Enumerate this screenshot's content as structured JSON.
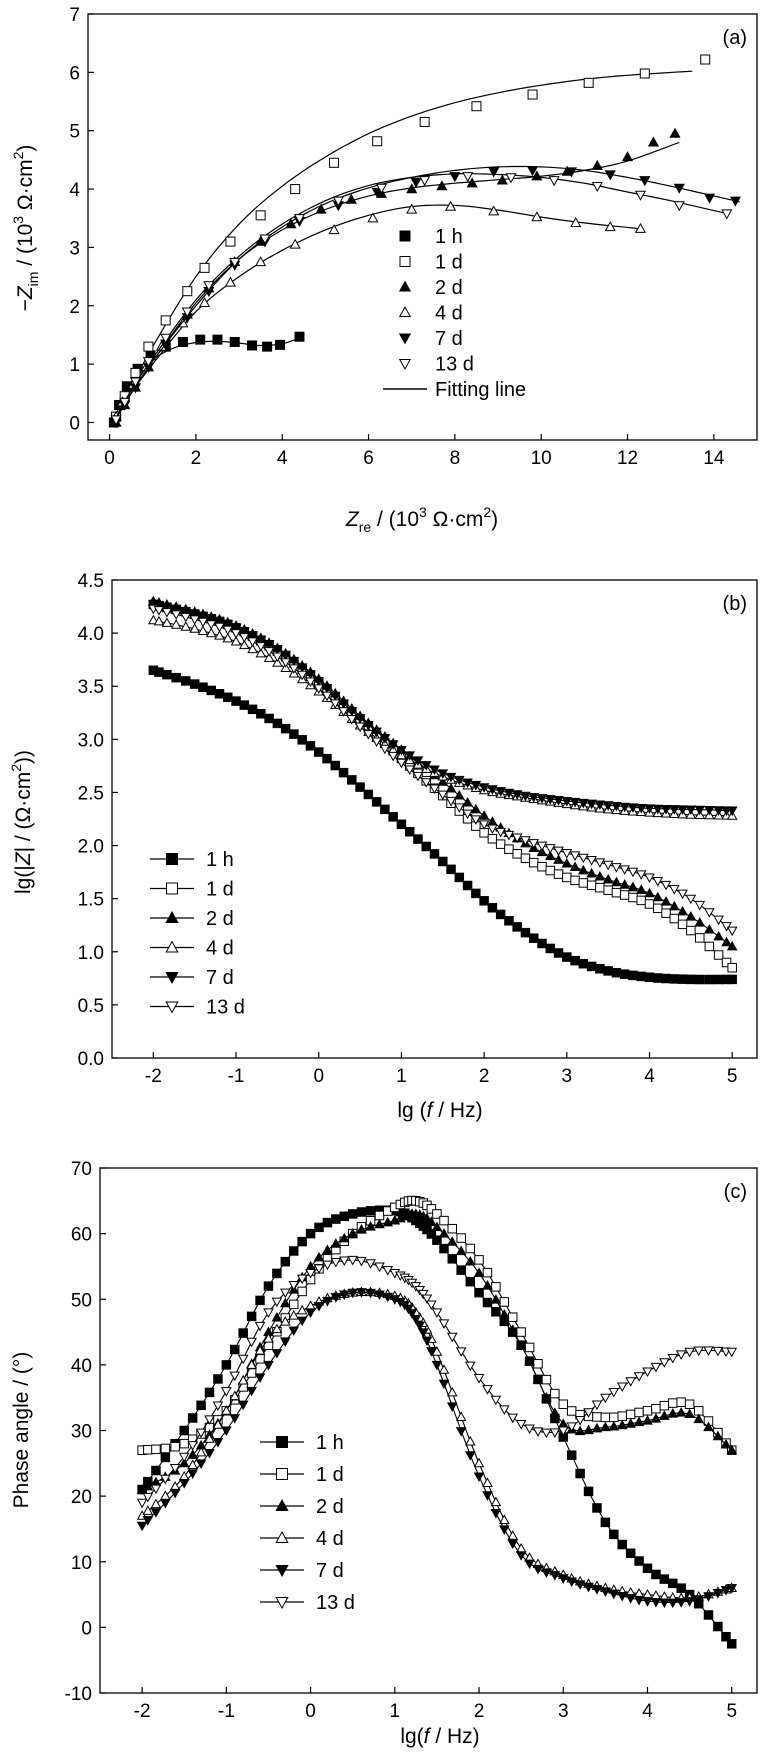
{
  "chart_data": [
    {
      "type": "scatter",
      "panel_label": "(a)",
      "xlabel": "Z_re / (10^3 Ω·cm^2)",
      "ylabel": "−Z_im / (10^3 Ω·cm^2)",
      "xlim": [
        -0.5,
        15
      ],
      "ylim": [
        -0.3,
        7
      ],
      "xticks": [
        "0",
        "2",
        "4",
        "6",
        "8",
        "10",
        "12",
        "14"
      ],
      "yticks": [
        "0",
        "1",
        "2",
        "3",
        "4",
        "5",
        "6",
        "7"
      ],
      "legend": {
        "placement": "center",
        "fit_label": "Fitting line"
      },
      "series": [
        {
          "name": "1 h",
          "marker": "square",
          "filled": true,
          "x": [
            0.1,
            0.22,
            0.4,
            0.65,
            0.95,
            1.3,
            1.7,
            2.1,
            2.5,
            2.9,
            3.3,
            3.65,
            3.95,
            4.4
          ],
          "y": [
            0.0,
            0.3,
            0.62,
            0.92,
            1.15,
            1.3,
            1.38,
            1.42,
            1.42,
            1.38,
            1.32,
            1.3,
            1.33,
            1.47
          ],
          "fit_x": [
            0.1,
            0.3,
            0.6,
            1.0,
            1.5,
            2.0,
            2.5,
            3.0,
            3.5,
            4.0,
            4.4
          ],
          "fit_y": [
            0.0,
            0.42,
            0.8,
            1.08,
            1.28,
            1.37,
            1.39,
            1.36,
            1.32,
            1.35,
            1.45
          ]
        },
        {
          "name": "1 d",
          "marker": "square",
          "filled": false,
          "x": [
            0.15,
            0.35,
            0.6,
            0.9,
            1.3,
            1.8,
            2.2,
            2.8,
            3.5,
            4.3,
            5.2,
            6.2,
            7.3,
            8.5,
            9.8,
            11.1,
            12.4,
            13.8
          ],
          "y": [
            0.1,
            0.45,
            0.85,
            1.3,
            1.75,
            2.25,
            2.65,
            3.1,
            3.55,
            4.0,
            4.45,
            4.82,
            5.15,
            5.42,
            5.62,
            5.82,
            5.98,
            6.22
          ],
          "fit_x": [
            0.1,
            0.5,
            1.0,
            2.0,
            3.0,
            4.0,
            5.0,
            6.0,
            7.0,
            8.0,
            9.0,
            10.0,
            11.0,
            12.0,
            13.5
          ],
          "fit_y": [
            0.0,
            0.6,
            1.3,
            2.5,
            3.4,
            4.05,
            4.55,
            4.95,
            5.25,
            5.48,
            5.65,
            5.78,
            5.88,
            5.95,
            6.02
          ]
        },
        {
          "name": "2 d",
          "marker": "triangle-up",
          "filled": true,
          "x": [
            0.15,
            0.35,
            0.6,
            0.9,
            1.3,
            1.8,
            2.3,
            2.9,
            3.5,
            4.2,
            4.9,
            5.6,
            6.3,
            7.0,
            7.7,
            8.4,
            9.1,
            9.9,
            10.6,
            11.3,
            12.0,
            12.6,
            13.1
          ],
          "y": [
            0.0,
            0.3,
            0.6,
            0.95,
            1.35,
            1.85,
            2.3,
            2.75,
            3.1,
            3.4,
            3.65,
            3.82,
            3.92,
            4.0,
            4.05,
            4.1,
            4.15,
            4.22,
            4.3,
            4.4,
            4.55,
            4.8,
            4.95
          ],
          "fit_x": [
            0.1,
            0.5,
            1.0,
            2.0,
            3.0,
            4.0,
            5.0,
            6.0,
            7.0,
            8.0,
            9.0,
            10.0,
            11.0,
            12.0,
            13.2
          ],
          "fit_y": [
            0.0,
            0.5,
            1.05,
            2.05,
            2.8,
            3.3,
            3.65,
            3.88,
            4.02,
            4.1,
            4.16,
            4.22,
            4.32,
            4.48,
            4.8
          ]
        },
        {
          "name": "4 d",
          "marker": "triangle-up",
          "filled": false,
          "x": [
            0.15,
            0.3,
            0.55,
            0.85,
            1.2,
            1.7,
            2.2,
            2.8,
            3.5,
            4.3,
            5.2,
            6.1,
            7.0,
            7.9,
            8.9,
            9.9,
            10.8,
            11.6,
            12.3
          ],
          "y": [
            0.1,
            0.35,
            0.65,
            0.95,
            1.3,
            1.7,
            2.05,
            2.4,
            2.75,
            3.05,
            3.3,
            3.5,
            3.65,
            3.7,
            3.62,
            3.52,
            3.42,
            3.35,
            3.32
          ],
          "fit_x": [
            0.1,
            0.5,
            1.0,
            2.0,
            3.0,
            4.0,
            5.0,
            6.0,
            7.0,
            8.0,
            9.0,
            10.0,
            11.0,
            12.3
          ],
          "fit_y": [
            0.0,
            0.5,
            1.0,
            1.9,
            2.5,
            2.95,
            3.3,
            3.55,
            3.7,
            3.72,
            3.64,
            3.52,
            3.42,
            3.32
          ]
        },
        {
          "name": "7 d",
          "marker": "triangle-down",
          "filled": true,
          "x": [
            0.15,
            0.35,
            0.6,
            0.9,
            1.3,
            1.8,
            2.3,
            2.9,
            3.6,
            4.4,
            5.3,
            6.2,
            7.1,
            8.0,
            8.9,
            9.8,
            10.7,
            11.6,
            12.4,
            13.2,
            13.9,
            14.5
          ],
          "y": [
            0.0,
            0.3,
            0.6,
            0.95,
            1.35,
            1.8,
            2.25,
            2.7,
            3.1,
            3.45,
            3.72,
            3.95,
            4.12,
            4.22,
            4.3,
            4.32,
            4.3,
            4.25,
            4.15,
            4.02,
            3.85,
            3.8
          ],
          "fit_x": [
            0.1,
            0.5,
            1.0,
            2.0,
            3.0,
            4.0,
            5.0,
            6.0,
            7.0,
            8.0,
            9.0,
            10.0,
            11.0,
            12.0,
            13.0,
            14.6
          ],
          "fit_y": [
            0.0,
            0.5,
            1.05,
            2.0,
            2.8,
            3.35,
            3.75,
            4.02,
            4.2,
            4.32,
            4.38,
            4.38,
            4.32,
            4.2,
            4.05,
            3.78
          ]
        },
        {
          "name": "13 d",
          "marker": "triangle-down",
          "filled": false,
          "x": [
            0.15,
            0.35,
            0.6,
            0.9,
            1.3,
            1.8,
            2.3,
            2.9,
            3.6,
            4.4,
            5.3,
            6.3,
            7.3,
            8.3,
            9.3,
            10.3,
            11.3,
            12.3,
            13.2,
            14.3
          ],
          "y": [
            0.05,
            0.35,
            0.7,
            1.05,
            1.45,
            1.9,
            2.35,
            2.75,
            3.15,
            3.5,
            3.8,
            4.02,
            4.15,
            4.22,
            4.2,
            4.15,
            4.05,
            3.9,
            3.72,
            3.58
          ],
          "fit_x": [
            0.1,
            0.5,
            1.0,
            2.0,
            3.0,
            4.0,
            5.0,
            6.0,
            7.0,
            8.0,
            9.0,
            10.0,
            11.0,
            12.0,
            13.0,
            14.3
          ],
          "fit_y": [
            0.0,
            0.55,
            1.1,
            2.1,
            2.85,
            3.4,
            3.8,
            4.06,
            4.2,
            4.26,
            4.25,
            4.2,
            4.1,
            3.95,
            3.8,
            3.58
          ]
        }
      ]
    },
    {
      "type": "line",
      "panel_label": "(b)",
      "xlabel": "lg (f / Hz)",
      "ylabel": "lg(|Z| / (Ω·cm^2))",
      "xlim": [
        -2.5,
        5.3
      ],
      "ylim": [
        0.0,
        4.5
      ],
      "xticks": [
        "-2",
        "-1",
        "0",
        "1",
        "2",
        "3",
        "4",
        "5"
      ],
      "yticks": [
        "0.0",
        "0.5",
        "1.0",
        "1.5",
        "2.0",
        "2.5",
        "3.0",
        "3.5",
        "4.0",
        "4.5"
      ],
      "x": [
        -2,
        -1.5,
        -1,
        -0.5,
        0,
        0.5,
        1,
        1.5,
        2,
        2.5,
        3,
        3.5,
        4,
        4.5,
        5
      ],
      "legend": {
        "placement": "bottom-left"
      },
      "series": [
        {
          "name": "1 h",
          "marker": "square",
          "filled": true,
          "values": [
            3.65,
            3.52,
            3.36,
            3.15,
            2.88,
            2.55,
            2.2,
            1.85,
            1.48,
            1.18,
            0.95,
            0.82,
            0.76,
            0.74,
            0.74
          ]
        },
        {
          "name": "1 d",
          "marker": "square",
          "filled": false,
          "values": [
            4.27,
            4.18,
            4.05,
            3.83,
            3.53,
            3.18,
            2.82,
            2.47,
            2.12,
            1.88,
            1.7,
            1.58,
            1.45,
            1.2,
            0.85
          ]
        },
        {
          "name": "2 d",
          "marker": "triangle-up",
          "filled": true,
          "values": [
            4.3,
            4.2,
            4.07,
            3.86,
            3.57,
            3.22,
            2.9,
            2.6,
            2.28,
            2.02,
            1.83,
            1.68,
            1.55,
            1.33,
            1.05
          ]
        },
        {
          "name": "4 d",
          "marker": "triangle-up",
          "filled": false,
          "values": [
            4.12,
            4.04,
            3.92,
            3.72,
            3.45,
            3.13,
            2.85,
            2.65,
            2.52,
            2.45,
            2.39,
            2.34,
            2.31,
            2.29,
            2.28
          ]
        },
        {
          "name": "7 d",
          "marker": "triangle-down",
          "filled": true,
          "values": [
            4.27,
            4.18,
            4.05,
            3.85,
            3.55,
            3.2,
            2.9,
            2.68,
            2.55,
            2.47,
            2.42,
            2.38,
            2.35,
            2.34,
            2.33
          ]
        },
        {
          "name": "13 d",
          "marker": "triangle-down",
          "filled": false,
          "values": [
            4.23,
            4.13,
            4.0,
            3.78,
            3.48,
            3.12,
            2.78,
            2.48,
            2.2,
            2.05,
            1.93,
            1.82,
            1.7,
            1.5,
            1.2
          ]
        }
      ]
    },
    {
      "type": "line",
      "panel_label": "(c)",
      "xlabel": "lg(f / Hz)",
      "ylabel": "Phase angle / (°)",
      "xlim": [
        -2.5,
        5.3
      ],
      "ylim": [
        -10,
        70
      ],
      "xticks": [
        "-2",
        "-1",
        "0",
        "1",
        "2",
        "3",
        "4",
        "5"
      ],
      "yticks": [
        "-10",
        "0",
        "10",
        "20",
        "30",
        "40",
        "50",
        "60",
        "70"
      ],
      "x": [
        -2,
        -1.5,
        -1,
        -0.5,
        0,
        0.5,
        1,
        1.25,
        1.5,
        2,
        2.5,
        3,
        3.5,
        4,
        4.5,
        5
      ],
      "legend": {
        "placement": "bottom-left"
      },
      "series": [
        {
          "name": "1 h",
          "marker": "square",
          "filled": true,
          "values": [
            21,
            30,
            40,
            52,
            60,
            63,
            63.5,
            62,
            59,
            51,
            43,
            29,
            16,
            9,
            5,
            -2.5
          ]
        },
        {
          "name": "1 d",
          "marker": "square",
          "filled": false,
          "values": [
            27,
            28,
            33,
            43,
            53,
            60,
            64,
            65,
            63,
            56,
            45,
            34,
            32,
            33,
            34,
            27
          ]
        },
        {
          "name": "2 d",
          "marker": "triangle-up",
          "filled": true,
          "values": [
            21,
            25,
            33,
            45,
            55,
            60,
            62,
            63,
            61,
            54,
            43,
            31,
            30.5,
            31.5,
            32.5,
            27
          ]
        },
        {
          "name": "4 d",
          "marker": "triangle-up",
          "filled": false,
          "values": [
            17,
            23,
            33,
            44,
            49,
            51,
            50.5,
            48,
            42,
            25,
            12,
            8,
            6,
            5,
            4.5,
            6
          ]
        },
        {
          "name": "7 d",
          "marker": "triangle-down",
          "filled": true,
          "values": [
            15.5,
            22,
            30,
            40,
            48,
            51,
            50,
            47,
            40,
            23,
            11,
            7.5,
            5.5,
            4,
            4,
            6
          ]
        },
        {
          "name": "13 d",
          "marker": "triangle-down",
          "filled": false,
          "values": [
            19,
            26,
            36,
            48,
            54,
            56,
            54,
            52,
            48,
            38,
            31,
            30,
            35,
            39,
            42,
            42
          ]
        }
      ]
    }
  ]
}
